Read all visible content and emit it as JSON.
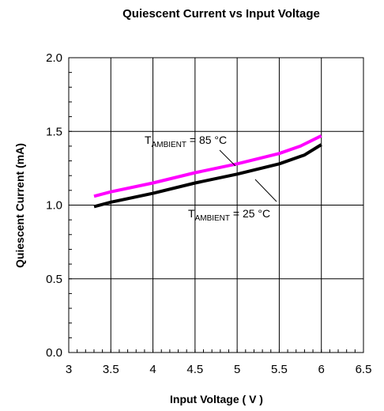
{
  "chart_data": {
    "type": "line",
    "title": "Quiescent Current vs Input Voltage",
    "xlabel": "Input Voltage ( V )",
    "ylabel": "Quiescent Current (mA)",
    "xlim": [
      3,
      6.5
    ],
    "ylim": [
      0,
      2.0
    ],
    "x_major_ticks": [
      3,
      3.5,
      4,
      4.5,
      5,
      5.5,
      6,
      6.5
    ],
    "x_tick_labels": [
      "3",
      "3.5",
      "4",
      "4.5",
      "5",
      "5.5",
      "6",
      "6.5"
    ],
    "y_major_ticks": [
      0,
      0.5,
      1.0,
      1.5,
      2.0
    ],
    "y_tick_labels": [
      "0.0",
      "0.5",
      "1.0",
      "1.5",
      "2.0"
    ],
    "minor_x_step": 0.1,
    "minor_y_step": 0.1,
    "grid": true,
    "series": [
      {
        "name": "TAMBIENT = 85 °C",
        "color": "#ff00ff",
        "x": [
          3.3,
          3.5,
          4.0,
          4.5,
          5.0,
          5.5,
          5.75,
          6.0
        ],
        "y": [
          1.06,
          1.09,
          1.15,
          1.22,
          1.28,
          1.35,
          1.4,
          1.47
        ]
      },
      {
        "name": "TAMBIENT = 25 °C",
        "color": "#000000",
        "x": [
          3.3,
          3.5,
          4.0,
          4.5,
          5.0,
          5.5,
          5.8,
          6.0
        ],
        "y": [
          0.99,
          1.02,
          1.08,
          1.15,
          1.21,
          1.28,
          1.34,
          1.41
        ]
      }
    ],
    "annotations": [
      {
        "main": "T",
        "sub": "AMBIENT",
        "rest": " = 85 °C",
        "series": 0
      },
      {
        "main": "T",
        "sub": "AMBIENT",
        "rest": " = 25 °C",
        "series": 1
      }
    ]
  }
}
